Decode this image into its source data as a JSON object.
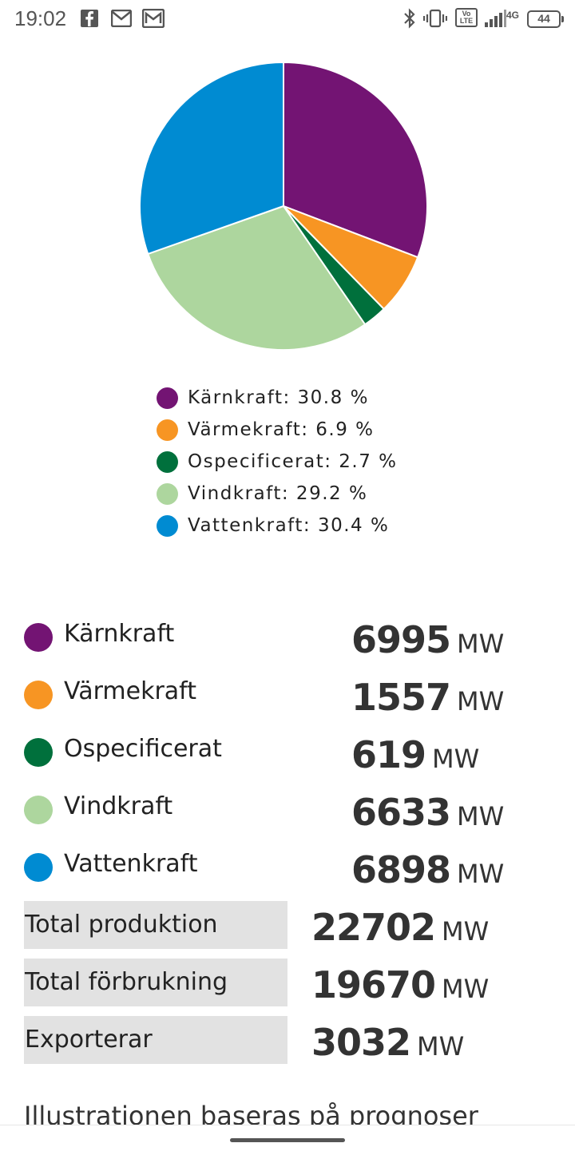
{
  "status": {
    "time": "19:02",
    "battery": "44",
    "network": "4G",
    "volte": "Vo LTE",
    "icons": [
      "facebook-icon",
      "gmail-icon",
      "gmail-icon",
      "bluetooth-icon",
      "vibrate-icon",
      "volte-icon",
      "signal-icon",
      "battery-icon"
    ]
  },
  "colors": {
    "karnkraft": "#731473",
    "varmekraft": "#f79523",
    "ospecificerat": "#00703c",
    "vindkraft": "#add69e",
    "vattenkraft": "#008bd2"
  },
  "chart_data": {
    "type": "pie",
    "labels": [
      "Kärnkraft",
      "Värmekraft",
      "Ospecificerat",
      "Vindkraft",
      "Vattenkraft"
    ],
    "values": [
      30.8,
      6.9,
      2.7,
      29.2,
      30.4
    ],
    "colors": [
      "#731473",
      "#f79523",
      "#00703c",
      "#add69e",
      "#008bd2"
    ],
    "legend_placement": "bottom"
  },
  "legend": [
    {
      "text": "Kärnkraft: 30.8 %"
    },
    {
      "text": "Värmekraft: 6.9 %"
    },
    {
      "text": "Ospecificerat: 2.7 %"
    },
    {
      "text": "Vindkraft: 29.2 %"
    },
    {
      "text": "Vattenkraft: 30.4 %"
    }
  ],
  "production": [
    {
      "label": "Kärnkraft",
      "value": "6995",
      "unit": "MW"
    },
    {
      "label": "Värmekraft",
      "value": "1557",
      "unit": "MW"
    },
    {
      "label": "Ospecificerat",
      "value": "619",
      "unit": "MW"
    },
    {
      "label": "Vindkraft",
      "value": "6633",
      "unit": "MW"
    },
    {
      "label": "Vattenkraft",
      "value": "6898",
      "unit": "MW"
    }
  ],
  "totals": [
    {
      "label": "Total produktion",
      "value": "22702",
      "unit": "MW"
    },
    {
      "label": "Total förbrukning",
      "value": "19670",
      "unit": "MW"
    },
    {
      "label": "Exporterar",
      "value": "3032",
      "unit": "MW"
    }
  ],
  "footnote": "Illustrationen baseras på prognoser"
}
